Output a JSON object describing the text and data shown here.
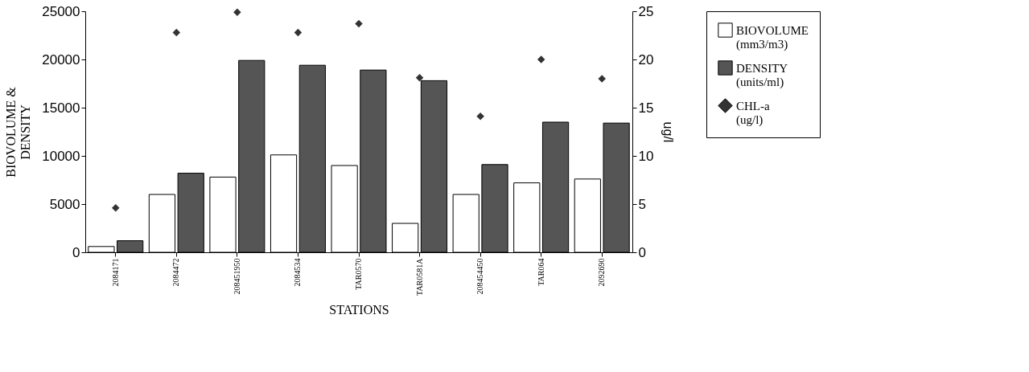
{
  "chart_data": {
    "type": "bar",
    "xlabel": "STATIONS",
    "ylabel": "BIOVOLUME & DENSITY",
    "y2label": "ug/l",
    "categories": [
      "2084171",
      "2084472",
      "208451950",
      "2084534",
      "TAR0570",
      "TAR0581A",
      "208454450",
      "TAR064",
      "2092690"
    ],
    "series": [
      {
        "name": "BIOVOLUME (mm3/m3)",
        "color": "#ffffff",
        "values": [
          600,
          6000,
          7800,
          10100,
          9000,
          3000,
          6000,
          7200,
          7600
        ]
      },
      {
        "name": "DENSITY (units/ml)",
        "color": "#555555",
        "values": [
          1200,
          8200,
          19900,
          19400,
          18900,
          17800,
          9100,
          13500,
          13400
        ]
      },
      {
        "name": "CHL-a (ug/l)",
        "color": "#333333",
        "type": "scatter",
        "axis": "y2",
        "marker": "diamond",
        "values": [
          4.6,
          22.8,
          24.9,
          22.8,
          23.7,
          18.1,
          14.1,
          20.0,
          18.0
        ]
      }
    ],
    "ylim": [
      0,
      25000
    ],
    "yticks": [
      0,
      5000,
      10000,
      15000,
      20000,
      25000
    ],
    "y2lim": [
      0,
      25
    ],
    "y2ticks": [
      0,
      5,
      10,
      15,
      20,
      25
    ],
    "grid": false,
    "legend": "right"
  }
}
